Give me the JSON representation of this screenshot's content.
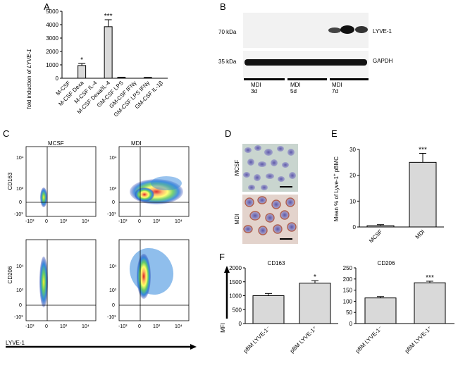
{
  "panels": {
    "A": {
      "letter": "A",
      "ylabel_prefix": "fold induction of ",
      "ylabel_gene": "LYVE-1",
      "yticks": [
        "0",
        "1000",
        "2000",
        "3000",
        "4000",
        "5000"
      ],
      "categories": [
        "M-CSF",
        "M-CSF Dexa",
        "M-CSF IL-4",
        "M-CSF Dexa/IL-4",
        "GM-CSF LPS",
        "GM-CSF IFNγ",
        "GM-CSF LPS IFNγ",
        "GM-CSF IL-1β"
      ],
      "values": [
        0,
        950,
        0,
        3850,
        60,
        0,
        50,
        0
      ],
      "errors": [
        0,
        150,
        0,
        520,
        20,
        0,
        15,
        0
      ],
      "stars": [
        "",
        "*",
        "",
        "***",
        "",
        "",
        "",
        ""
      ]
    },
    "B": {
      "letter": "B",
      "mw_top": "70 kDa",
      "mw_bottom": "35 kDa",
      "band_top": "LYVE-1",
      "band_bottom": "GAPDH",
      "groups": [
        {
          "label": "MDI",
          "time": "3d"
        },
        {
          "label": "MDI",
          "time": "5d"
        },
        {
          "label": "MDI",
          "time": "7d"
        }
      ]
    },
    "C": {
      "letter": "C",
      "col_titles": [
        "MCSF",
        "MDI"
      ],
      "row_labels": [
        "CD163",
        "CD206"
      ],
      "xlabel": "LYVE-1",
      "yticks": [
        "10⁴",
        "10³",
        "0",
        "-10³"
      ],
      "xticks": [
        "-10³",
        "0",
        "10³",
        "10⁴"
      ]
    },
    "D": {
      "letter": "D",
      "row_labels": [
        "MCSF",
        "MDI"
      ]
    },
    "E": {
      "letter": "E",
      "ylabel_main": "Mean % of Lyve-1",
      "ylabel_sup": "+",
      "ylabel_tail": " pBMC",
      "yticks": [
        "0",
        "10",
        "20",
        "30"
      ],
      "categories": [
        "MCSF",
        "MDI"
      ],
      "stars": [
        "",
        "***"
      ]
    },
    "F": {
      "letter": "F",
      "ylabel": "MFI",
      "categories": [
        "pBM LYVE-1⁻",
        "pBM LYVE-1⁺"
      ]
    }
  },
  "chart_data": [
    {
      "type": "bar",
      "title": "",
      "xlabel": "",
      "ylabel": "fold induction of LYVE-1",
      "ylim": [
        0,
        5000
      ],
      "categories": [
        "M-CSF",
        "M-CSF Dexa",
        "M-CSF IL-4",
        "M-CSF Dexa/IL-4",
        "GM-CSF LPS",
        "GM-CSF IFNγ",
        "GM-CSF LPS IFNγ",
        "GM-CSF IL-1β"
      ],
      "values": [
        0,
        950,
        0,
        3850,
        60,
        0,
        50,
        0
      ]
    },
    {
      "type": "bar",
      "title": "",
      "ylabel": "Mean % of Lyve-1+ pBMC",
      "ylim": [
        0,
        30
      ],
      "categories": [
        "MCSF",
        "MDI"
      ],
      "values": [
        0.5,
        25
      ],
      "errors": [
        0.4,
        3.5
      ]
    },
    {
      "type": "bar",
      "title": "CD163",
      "ylabel": "MFI",
      "ylim": [
        0,
        2000
      ],
      "yticks": [
        "0",
        "500",
        "1000",
        "1500",
        "2000"
      ],
      "categories": [
        "pBM LYVE-1⁻",
        "pBM LYVE-1⁺"
      ],
      "values": [
        1000,
        1450
      ],
      "errors": [
        80,
        90
      ],
      "stars": [
        "",
        "*"
      ]
    },
    {
      "type": "bar",
      "title": "CD206",
      "ylabel": "MFI",
      "ylim": [
        0,
        250
      ],
      "yticks": [
        "0",
        "50",
        "100",
        "150",
        "200",
        "250"
      ],
      "categories": [
        "pBM LYVE-1⁻",
        "pBM LYVE-1⁺"
      ],
      "values": [
        115,
        183
      ],
      "errors": [
        6,
        7
      ],
      "stars": [
        "",
        "***"
      ]
    }
  ]
}
